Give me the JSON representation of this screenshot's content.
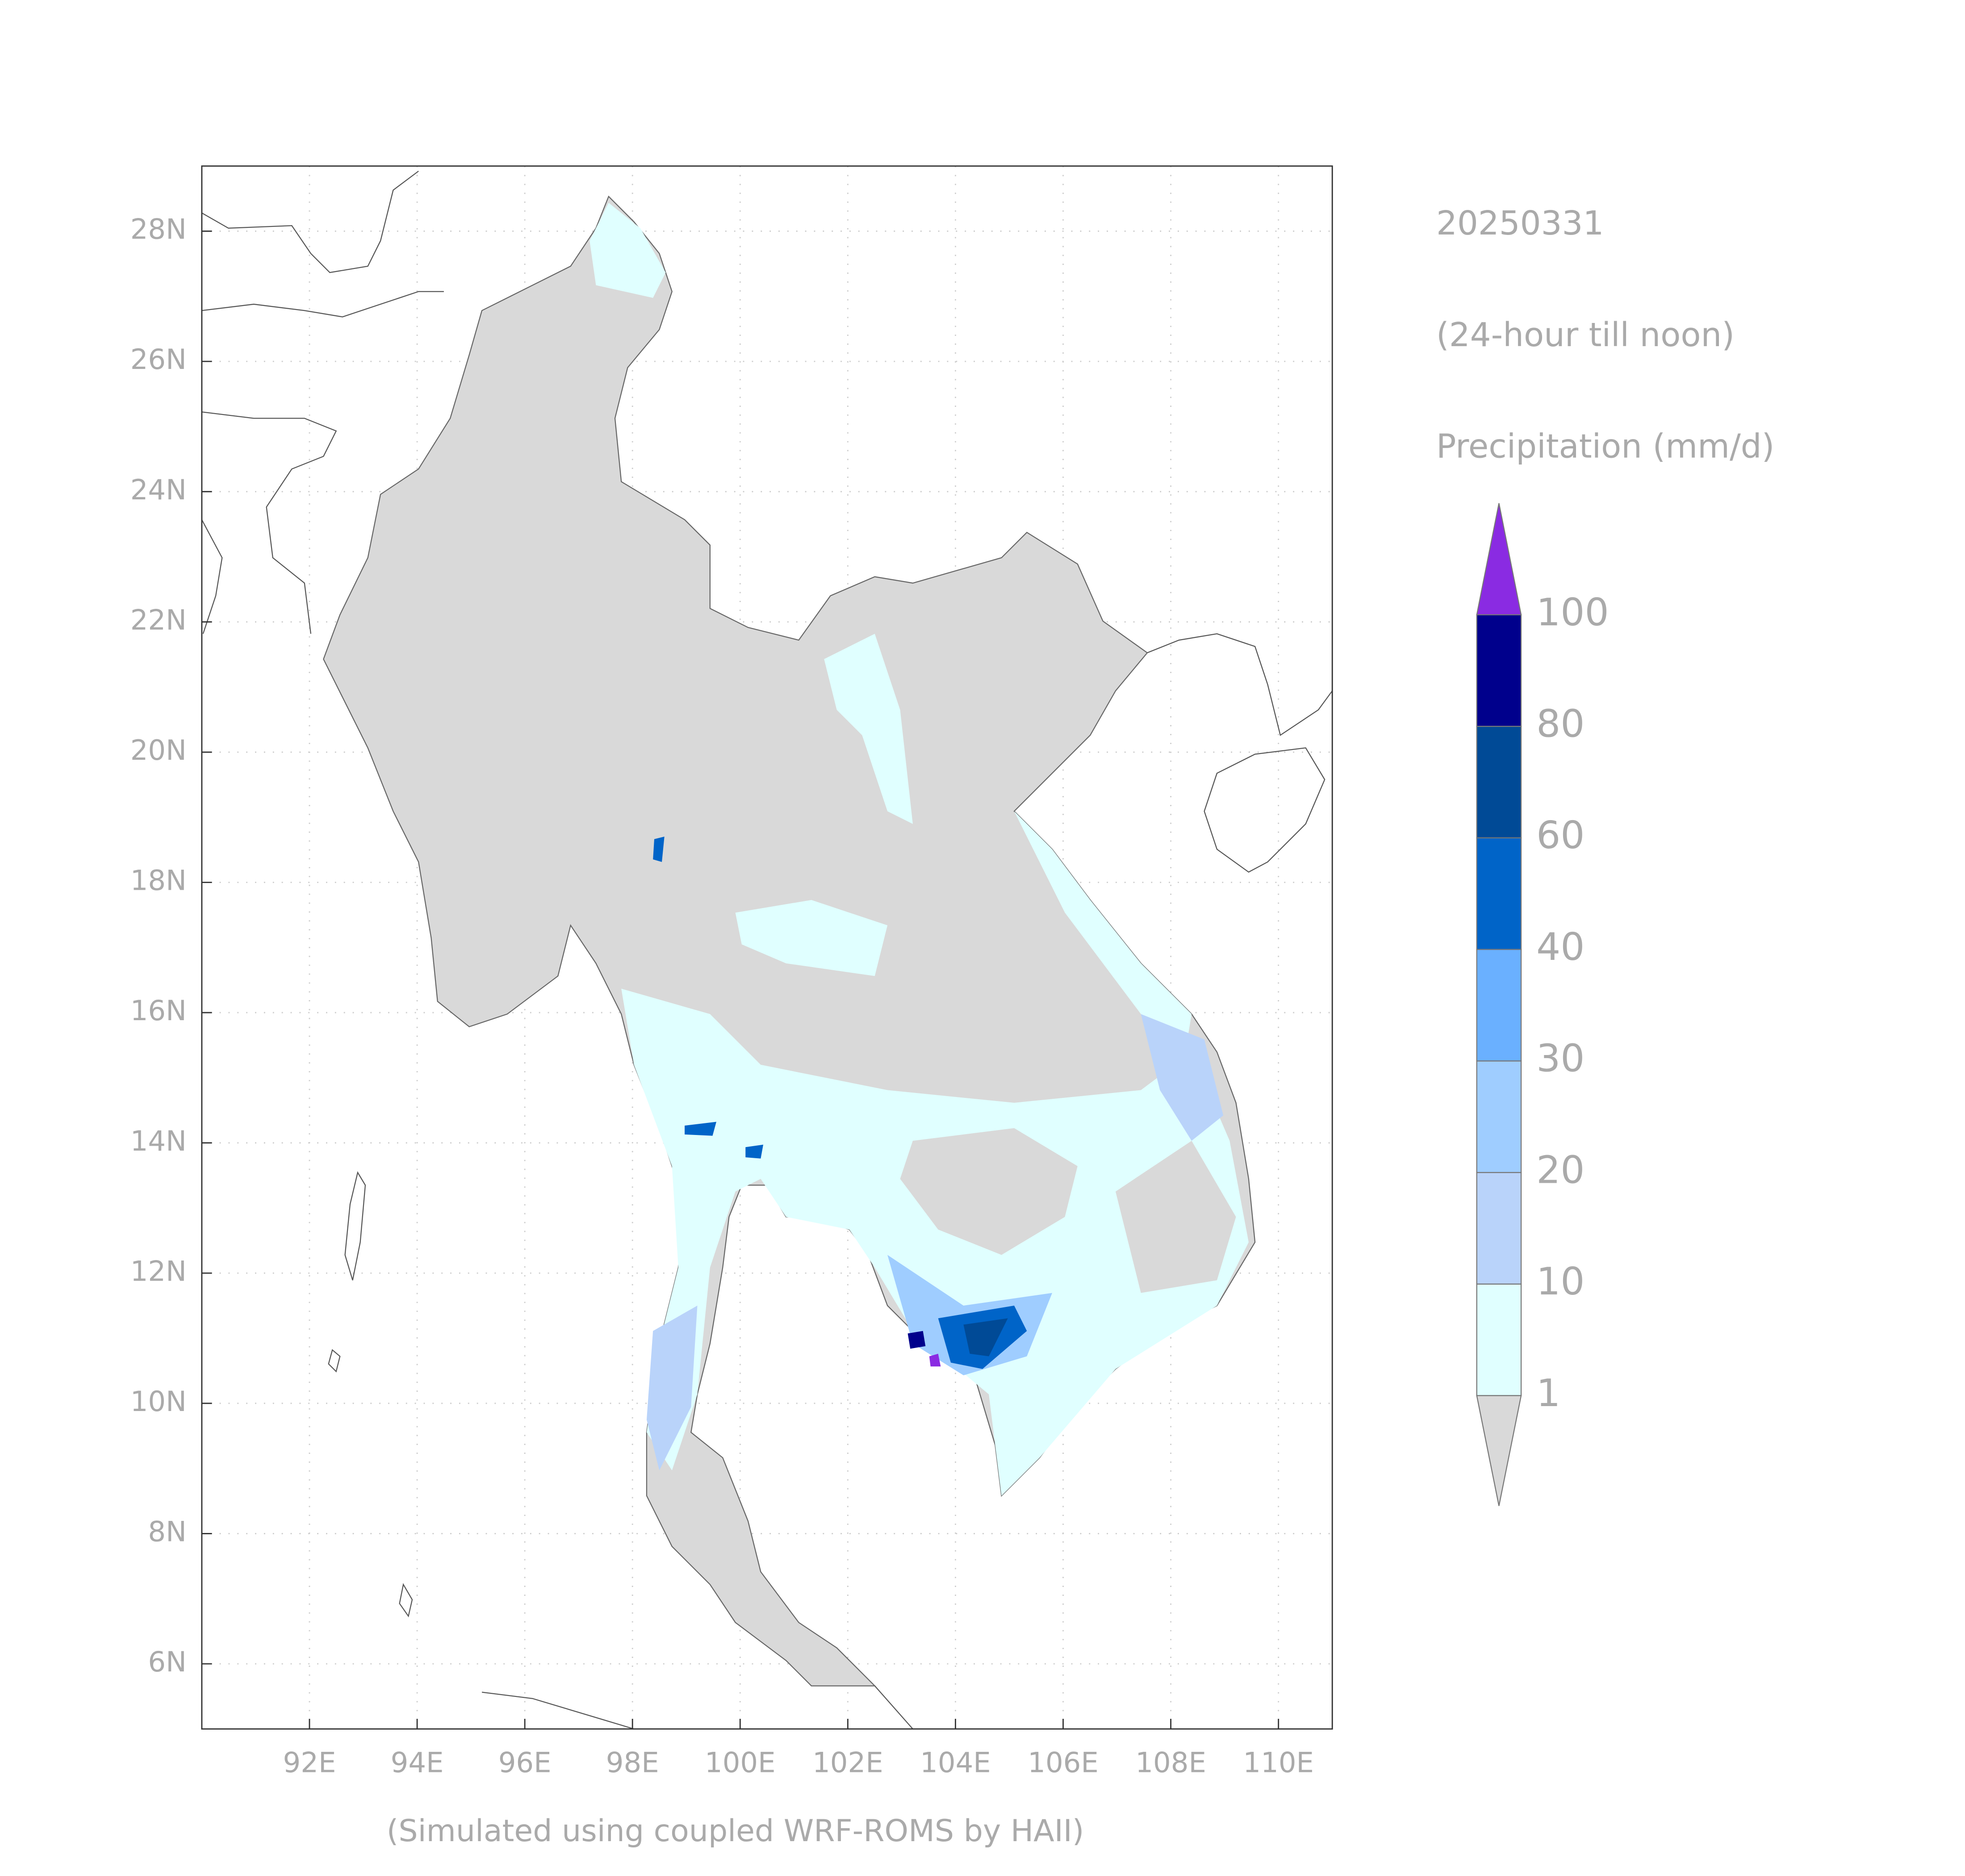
{
  "map": {
    "date": "20250331",
    "period": "(24-hour till noon)",
    "variable": "Precipitation (mm/d)",
    "credit": "(Simulated using coupled WRF-ROMS by HAII)",
    "xlim": [
      90,
      111
    ],
    "ylim": [
      5,
      29
    ],
    "xticks": [
      {
        "value": 92,
        "label": "92E"
      },
      {
        "value": 94,
        "label": "94E"
      },
      {
        "value": 96,
        "label": "96E"
      },
      {
        "value": 98,
        "label": "98E"
      },
      {
        "value": 100,
        "label": "100E"
      },
      {
        "value": 102,
        "label": "102E"
      },
      {
        "value": 104,
        "label": "104E"
      },
      {
        "value": 106,
        "label": "106E"
      },
      {
        "value": 108,
        "label": "108E"
      },
      {
        "value": 110,
        "label": "110E"
      }
    ],
    "yticks": [
      {
        "value": 6,
        "label": "6N"
      },
      {
        "value": 8,
        "label": "8N"
      },
      {
        "value": 10,
        "label": "10N"
      },
      {
        "value": 12,
        "label": "12N"
      },
      {
        "value": 14,
        "label": "14N"
      },
      {
        "value": 16,
        "label": "16N"
      },
      {
        "value": 18,
        "label": "18N"
      },
      {
        "value": 20,
        "label": "20N"
      },
      {
        "value": 22,
        "label": "22N"
      },
      {
        "value": 24,
        "label": "24N"
      },
      {
        "value": 26,
        "label": "26N"
      },
      {
        "value": 28,
        "label": "28N"
      }
    ],
    "grid": true,
    "colorbar": {
      "levels": [
        1,
        10,
        20,
        30,
        40,
        60,
        80,
        100
      ],
      "colors": [
        "#e0ffff",
        "#b9d3fa",
        "#9fcdff",
        "#6ab0ff",
        "#0064c8",
        "#004a96",
        "#00008c"
      ],
      "under_color": "#d9d9d9",
      "over_color": "#8a2be2"
    }
  }
}
